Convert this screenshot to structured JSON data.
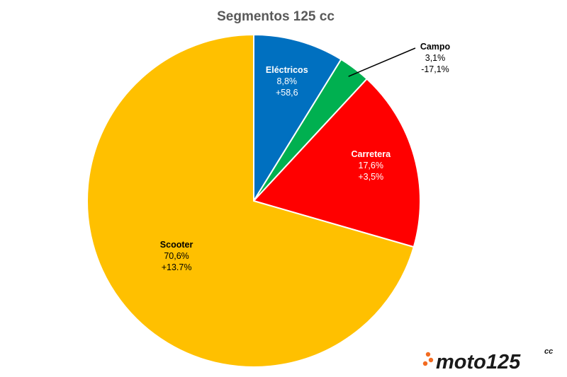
{
  "chart_data": {
    "type": "pie",
    "title": "Segmentos 125 cc",
    "slices": [
      {
        "name": "Eléctricos",
        "value": 8.8,
        "percent_label": "8,8%",
        "change_label": "+58,6",
        "color": "#0070C0",
        "label_color": "#ffffff"
      },
      {
        "name": "Campo",
        "value": 3.1,
        "percent_label": "3,1%",
        "change_label": "-17,1%",
        "color": "#00B050",
        "label_color": "#000000"
      },
      {
        "name": "Carretera",
        "value": 17.6,
        "percent_label": "17,6%",
        "change_label": "+3,5%",
        "color": "#FF0000",
        "label_color": "#ffffff"
      },
      {
        "name": "Scooter",
        "value": 70.6,
        "percent_label": "70,6%",
        "change_label": "+13.7%",
        "color": "#FFC000",
        "label_color": "#000000"
      }
    ],
    "start_angle": "12 o'clock",
    "direction": "clockwise",
    "legend": "none"
  },
  "logo": {
    "text": "moto125",
    "suffix": "cc",
    "accent_color": "#F26B21",
    "text_color": "#1a1a1a"
  }
}
